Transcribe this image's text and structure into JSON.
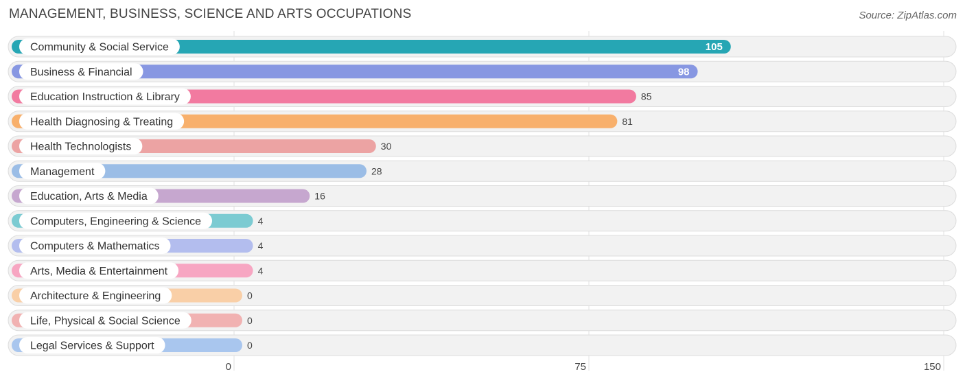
{
  "title": "MANAGEMENT, BUSINESS, SCIENCE AND ARTS OCCUPATIONS",
  "source": "Source: ZipAtlas.com",
  "chart_data": {
    "type": "bar",
    "orientation": "horizontal",
    "title": "MANAGEMENT, BUSINESS, SCIENCE AND ARTS OCCUPATIONS",
    "xlim": [
      0,
      150
    ],
    "xticks": [
      0,
      75,
      150
    ],
    "xtick_labels": [
      "0",
      "75",
      "150"
    ],
    "grid": true,
    "bars": [
      {
        "label": "Community & Social Service",
        "value": 105,
        "color": "#26a6b4",
        "value_inside": true
      },
      {
        "label": "Business & Financial",
        "value": 98,
        "color": "#8797e2",
        "value_inside": true
      },
      {
        "label": "Education Instruction & Library",
        "value": 85,
        "color": "#f27aa0",
        "value_inside": false
      },
      {
        "label": "Health Diagnosing & Treating",
        "value": 81,
        "color": "#f8b06c",
        "value_inside": false
      },
      {
        "label": "Health Technologists",
        "value": 30,
        "color": "#eca3a3",
        "value_inside": false
      },
      {
        "label": "Management",
        "value": 28,
        "color": "#9bbde6",
        "value_inside": false
      },
      {
        "label": "Education, Arts & Media",
        "value": 16,
        "color": "#c6a7cf",
        "value_inside": false
      },
      {
        "label": "Computers, Engineering & Science",
        "value": 4,
        "color": "#7ccbd2",
        "value_inside": false
      },
      {
        "label": "Computers & Mathematics",
        "value": 4,
        "color": "#b3bdee",
        "value_inside": false
      },
      {
        "label": "Arts, Media & Entertainment",
        "value": 4,
        "color": "#f7a6c2",
        "value_inside": false
      },
      {
        "label": "Architecture & Engineering",
        "value": 0,
        "color": "#f9cfa7",
        "value_inside": false
      },
      {
        "label": "Life, Physical & Social Science",
        "value": 0,
        "color": "#f1b2b2",
        "value_inside": false
      },
      {
        "label": "Legal Services & Support",
        "value": 0,
        "color": "#a9c6ee",
        "value_inside": false
      }
    ]
  }
}
